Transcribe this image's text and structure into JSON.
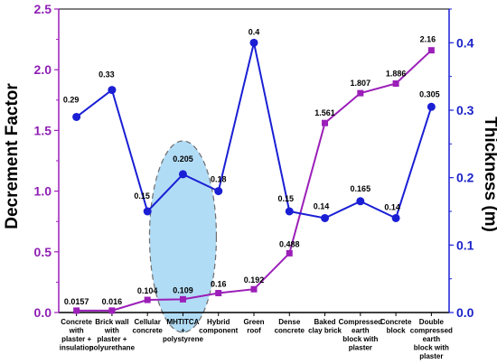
{
  "chart_data": {
    "type": "line",
    "xlabel": "",
    "ylabel_left": "Decrement Factor",
    "ylabel_right": "Thickness (m)",
    "ylim_left": [
      0,
      2.5
    ],
    "ylim_right": [
      0,
      0.45
    ],
    "yticks_left": [
      "0.0",
      "0.5",
      "1.0",
      "1.5",
      "2.0",
      "2.5"
    ],
    "yticks_right": [
      "0.0",
      "0.1",
      "0.2",
      "0.3",
      "0.4"
    ],
    "grid": false,
    "categories": [
      [
        "Concrete",
        "with",
        "plaster +",
        "insulation"
      ],
      [
        "Brick wall",
        "with",
        "plaster +",
        "polyurethane"
      ],
      [
        "Cellular",
        "concrete"
      ],
      [
        "MHTITCA",
        "+",
        "polystyrene"
      ],
      [
        "Hybrid",
        "component"
      ],
      [
        "Green",
        "roof"
      ],
      [
        "Dense",
        "concrete"
      ],
      [
        "Baked",
        "clay brick"
      ],
      [
        "Compressed",
        "earth",
        "block with",
        "plaster"
      ],
      [
        "Concrete",
        "block"
      ],
      [
        "Double",
        "compressed",
        "earth",
        "block with",
        "plaster"
      ]
    ],
    "highlight_category_index": 3,
    "series": [
      {
        "axis": "left",
        "color": "#9b1fb8",
        "marker": "square",
        "values": [
          0.0157,
          0.016,
          0.104,
          0.109,
          0.16,
          0.192,
          0.488,
          1.561,
          1.807,
          1.886,
          2.16
        ],
        "labels": [
          "0.0157",
          "0.016",
          "0.104",
          "0.109",
          "0.16",
          "0.192",
          "0.488",
          "1.561",
          "1.807",
          "1.886",
          "2.16"
        ]
      },
      {
        "axis": "right",
        "color": "#1a1fd4",
        "marker": "circle",
        "values": [
          0.29,
          0.33,
          0.15,
          0.205,
          0.18,
          0.4,
          0.15,
          0.14,
          0.165,
          0.14,
          0.305
        ],
        "labels": [
          "0.29",
          "0.33",
          "0.15",
          "0.205",
          "0.18",
          "0.4",
          "0.15",
          "0.14",
          "0.165",
          "0.14",
          "0.305"
        ]
      }
    ]
  }
}
